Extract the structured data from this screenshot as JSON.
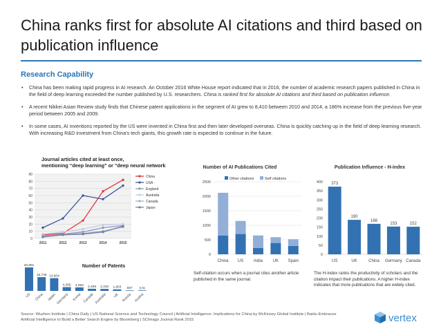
{
  "title": "China ranks first for absolute AI citations and third based on publication influence",
  "section_heading": "Research Capability",
  "bullets": [
    {
      "text": "China has been making rapid progress in AI research. An October 2016 White House report indicated that in 2016, the number of academic research papers published in China in the field of deep learning exceeded the number published by U.S. researchers.",
      "emphasis": "China is ranked first for absolute AI citations and third based on publication influence."
    },
    {
      "text": "A recent Nikkei Asian Review study finds that Chinese patent applications in the segment of AI grew to 8,410 between 2010 and 2014, a 186% increase from the previous five-year period between 2005 and 2009.",
      "emphasis": ""
    },
    {
      "text": "In some cases, AI inventions reported by the US were invented in China first and then later developed overseas. China is quickly catching up in the field of deep learning research. With increasing R&D investment from China's tech giants, this growth rate is expected to continue in the future.",
      "emphasis": ""
    }
  ],
  "chart_data": [
    {
      "type": "line",
      "title": "Journal articles cited at least once, mentioning “deep learning” or “deep neural network”",
      "x": [
        "2011",
        "2012",
        "2013",
        "2014",
        "2015"
      ],
      "ylim": [
        0,
        90
      ],
      "yticks": [
        "0",
        "10",
        "20",
        "30",
        "40",
        "50",
        "60",
        "70",
        "80",
        "90"
      ],
      "series": [
        {
          "name": "China",
          "color": "#e0393e",
          "values": [
            5,
            7,
            25,
            66,
            82
          ]
        },
        {
          "name": "USA",
          "color": "#3e5a99",
          "values": [
            15,
            28,
            60,
            55,
            74
          ]
        },
        {
          "name": "England",
          "color": "#8c97b8",
          "values": [
            3,
            6,
            9,
            15,
            18
          ]
        },
        {
          "name": "Australia",
          "color": "#c9cbe2",
          "values": [
            6,
            9,
            13,
            19,
            20
          ]
        },
        {
          "name": "Canada",
          "color": "#a3acc9",
          "values": [
            4,
            5,
            7,
            10,
            16
          ]
        },
        {
          "name": "Japan",
          "color": "#6f7fa6",
          "values": [
            2,
            5,
            6,
            9,
            17
          ]
        }
      ]
    },
    {
      "type": "bar",
      "title": "Number of Patents",
      "categories": [
        "US",
        "China",
        "Japan",
        "Germany",
        "Korea",
        "Canada",
        "Australia",
        "UK",
        "Russia",
        "Austria"
      ],
      "values": [
        26891,
        15745,
        14604,
        4366,
        4053,
        2469,
        2310,
        1803,
        597,
        578
      ],
      "labels": [
        "26,891",
        "15,745",
        "14,604",
        "4,366",
        "4,053",
        "2,469",
        "2,310",
        "1,803",
        "597",
        "578"
      ]
    },
    {
      "type": "bar",
      "stacked": true,
      "title": "Number of AI Publications Cited",
      "categories": [
        "China",
        "US",
        "India",
        "UK",
        "Spain"
      ],
      "ylim": [
        0,
        2500
      ],
      "yticks": [
        "0",
        "500",
        "1000",
        "1500",
        "2000",
        "2500"
      ],
      "legend": [
        "Other citations",
        "Self citations"
      ],
      "series": [
        {
          "name": "Other citations",
          "color": "#3272b2",
          "values": [
            650,
            700,
            220,
            390,
            290
          ]
        },
        {
          "name": "Self citations",
          "color": "#93afd8",
          "values": [
            1470,
            450,
            430,
            200,
            230
          ]
        }
      ],
      "note": "Self-citation occurs when a journal cites another article published in the same journal."
    },
    {
      "type": "bar",
      "title": "Publication Influence - H-index",
      "categories": [
        "US",
        "UK",
        "China",
        "Germany",
        "Canada"
      ],
      "values": [
        373,
        190,
        168,
        153,
        152
      ],
      "ylim": [
        0,
        400
      ],
      "yticks": [
        "0",
        "50",
        "100",
        "150",
        "200",
        "250",
        "300",
        "350",
        "400"
      ],
      "color": "#3272b2",
      "note": "The H-index ranks the productivity of scholars and the citation impact their publications. A higher H-index indicates that more publications that are widely cited."
    }
  ],
  "footer": {
    "line1": "Source: Wuzhen Institute | China Daily | US National Science and Technology Council | Artificial Intelligence: Implications for China by McKinsey Global Institute | Baidu Embraces",
    "line2": "Artificial Intelligence to Build a Better Search Engine by Bloomberg | SCImago Journal Rank 2015"
  },
  "brand": {
    "name": "vertex",
    "color": "#3b8fd0"
  }
}
